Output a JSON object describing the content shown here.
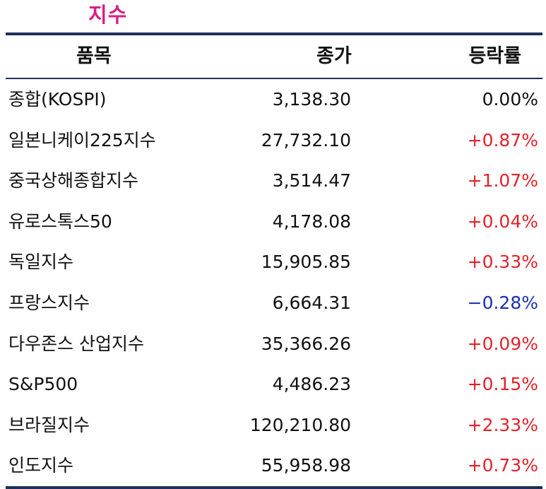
{
  "title": "지수",
  "headers": {
    "name": "품목",
    "close": "종가",
    "change": "등락률"
  },
  "colors": {
    "title": "#d91f87",
    "rule": "#1e2f5a",
    "up": "#e3222b",
    "down": "#1a2fb4",
    "flat": "#111111"
  },
  "rows": [
    {
      "name": "종합(KOSPI)",
      "close": "3,138.30",
      "change": "0.00%",
      "direction": "flat"
    },
    {
      "name": "일본니케이225지수",
      "close": "27,732.10",
      "change": "+0.87%",
      "direction": "up"
    },
    {
      "name": "중국상해종합지수",
      "close": "3,514.47",
      "change": "+1.07%",
      "direction": "up"
    },
    {
      "name": "유로스톡스50",
      "close": "4,178.08",
      "change": "+0.04%",
      "direction": "up"
    },
    {
      "name": "독일지수",
      "close": "15,905.85",
      "change": "+0.33%",
      "direction": "up"
    },
    {
      "name": "프랑스지수",
      "close": "6,664.31",
      "change": "−0.28%",
      "direction": "down"
    },
    {
      "name": "다우존스 산업지수",
      "close": "35,366.26",
      "change": "+0.09%",
      "direction": "up"
    },
    {
      "name": "S&P500",
      "close": "4,486.23",
      "change": "+0.15%",
      "direction": "up"
    },
    {
      "name": "브라질지수",
      "close": "120,210.80",
      "change": "+2.33%",
      "direction": "up"
    },
    {
      "name": "인도지수",
      "close": "55,958.98",
      "change": "+0.73%",
      "direction": "up"
    }
  ]
}
